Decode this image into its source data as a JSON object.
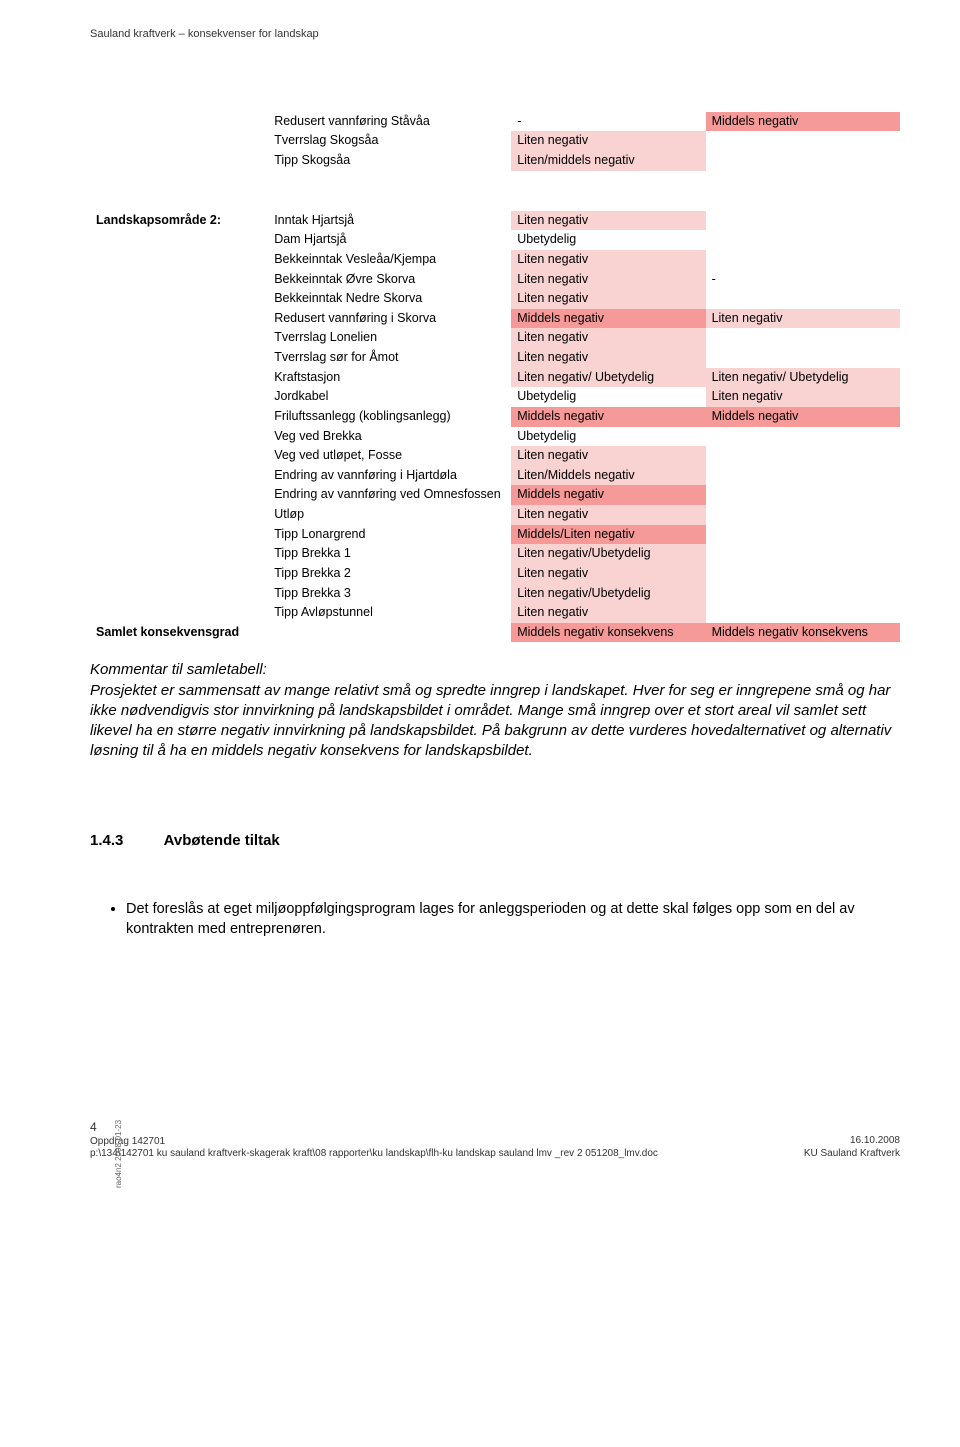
{
  "header": "Sauland kraftverk – konsekvenser for landskap",
  "colors": {
    "pink_light": "#f9d2d2",
    "pink_med": "#f59a99",
    "text": "#000000",
    "bg": "#ffffff"
  },
  "table1": {
    "columns": [
      "",
      "",
      "",
      ""
    ],
    "rows": [
      {
        "a": "",
        "b": "Redusert vannføring Ståvåa",
        "c": "-",
        "d": "Middels negativ",
        "cClass": "",
        "dClass": "pink-med"
      },
      {
        "a": "",
        "b": "Tverrslag Skogsåa",
        "c": "Liten negativ",
        "d": "",
        "cClass": "pink-light",
        "dClass": ""
      },
      {
        "a": "",
        "b": "Tipp Skogsåa",
        "c": "Liten/middels negativ",
        "d": "",
        "cClass": "pink-light",
        "dClass": ""
      }
    ]
  },
  "table2": {
    "rows": [
      {
        "a": "Landskapsområde 2:",
        "b": "Inntak Hjartsjå",
        "c": "Liten negativ",
        "d": "",
        "cClass": "pink-light",
        "dClass": ""
      },
      {
        "a": "",
        "b": "Dam Hjartsjå",
        "c": "Ubetydelig",
        "d": "",
        "cClass": "",
        "dClass": ""
      },
      {
        "a": "",
        "b": "Bekkeinntak Vesleåa/Kjempa",
        "c": "Liten negativ",
        "d": "",
        "cClass": "pink-light",
        "dClass": ""
      },
      {
        "a": "",
        "b": "Bekkeinntak Øvre Skorva",
        "c": "Liten negativ",
        "d": "-",
        "cClass": "pink-light",
        "dClass": ""
      },
      {
        "a": "",
        "b": "Bekkeinntak Nedre Skorva",
        "c": "Liten negativ",
        "d": "",
        "cClass": "pink-light",
        "dClass": ""
      },
      {
        "a": "",
        "b": "Redusert vannføring i Skorva",
        "c": "Middels negativ",
        "d": "Liten negativ",
        "cClass": "pink-med",
        "dClass": "pink-light"
      },
      {
        "a": "",
        "b": "Tverrslag Lonelien",
        "c": "Liten negativ",
        "d": "",
        "cClass": "pink-light",
        "dClass": ""
      },
      {
        "a": "",
        "b": "Tverrslag sør for Åmot",
        "c": "Liten negativ",
        "d": "",
        "cClass": "pink-light",
        "dClass": ""
      },
      {
        "a": "",
        "b": "Kraftstasjon",
        "c": "Liten negativ/ Ubetydelig",
        "d": "Liten negativ/ Ubetydelig",
        "cClass": "pink-light",
        "dClass": "pink-light"
      },
      {
        "a": "",
        "b": "Jordkabel",
        "c": "Ubetydelig",
        "d": "Liten negativ",
        "cClass": "",
        "dClass": "pink-light"
      },
      {
        "a": "",
        "b": "Friluftssanlegg (koblingsanlegg)",
        "c": "Middels negativ",
        "d": "Middels negativ",
        "cClass": "pink-med",
        "dClass": "pink-med"
      },
      {
        "a": "",
        "b": "Veg ved Brekka",
        "c": "Ubetydelig",
        "d": "",
        "cClass": "",
        "dClass": ""
      },
      {
        "a": "",
        "b": "Veg ved utløpet, Fosse",
        "c": "Liten negativ",
        "d": "",
        "cClass": "pink-light",
        "dClass": ""
      },
      {
        "a": "",
        "b": "Endring av vannføring i Hjartdøla",
        "c": "Liten/Middels negativ",
        "d": "",
        "cClass": "pink-light",
        "dClass": ""
      },
      {
        "a": "",
        "b": "Endring av vannføring ved Omnesfossen",
        "c": "Middels negativ",
        "d": "",
        "cClass": "pink-med",
        "dClass": ""
      },
      {
        "a": "",
        "b": "Utløp",
        "c": "Liten negativ",
        "d": "",
        "cClass": "pink-light",
        "dClass": ""
      },
      {
        "a": "",
        "b": "Tipp Lonargrend",
        "c": "Middels/Liten negativ",
        "d": "",
        "cClass": "pink-med",
        "dClass": ""
      },
      {
        "a": "",
        "b": "Tipp Brekka 1",
        "c": "Liten negativ/Ubetydelig",
        "d": "",
        "cClass": "pink-light",
        "dClass": ""
      },
      {
        "a": "",
        "b": "Tipp Brekka 2",
        "c": "Liten negativ",
        "d": "",
        "cClass": "pink-light",
        "dClass": ""
      },
      {
        "a": "",
        "b": "Tipp Brekka 3",
        "c": "Liten negativ/Ubetydelig",
        "d": "",
        "cClass": "pink-light",
        "dClass": ""
      },
      {
        "a": "",
        "b": "Tipp Avløpstunnel",
        "c": "Liten negativ",
        "d": "",
        "cClass": "pink-light",
        "dClass": ""
      },
      {
        "a": "Samlet konsekvensgrad",
        "b": "",
        "c": "Middels negativ konsekvens",
        "d": "Middels negativ konsekvens",
        "cClass": "pink-med",
        "dClass": "pink-med"
      }
    ]
  },
  "commentary": {
    "lead": "Kommentar til samletabell:",
    "body": "Prosjektet er sammensatt av mange relativt små og spredte inngrep i landskapet. Hver for seg er inngrepene små og har ikke nødvendigvis stor innvirkning på landskapsbildet i området. Mange små inngrep over et stort areal vil samlet sett likevel ha en større negativ innvirkning på landskapsbildet. På bakgrunn av dette vurderes hovedalternativet og alternativ løsning til å ha en middels negativ konsekvens for landskapsbildet."
  },
  "section": {
    "number": "1.4.3",
    "title": "Avbøtende tiltak"
  },
  "bullet": "Det foreslås at eget miljøoppfølgingsprogram lages for anleggsperioden og at dette skal følges opp som en del av kontrakten med entreprenøren.",
  "footer": {
    "page": "4",
    "oppdrag": "Oppdrag 142701",
    "path": "p:\\134\\142701 ku sauland kraftverk-skagerak kraft\\08 rapporter\\ku landskap\\flh-ku landskap sauland lmv _rev 2 051208_lmv.doc",
    "date": "16.10.2008",
    "project": "KU Sauland Kraftverk"
  },
  "side": "rao4n2 2008-01-23"
}
